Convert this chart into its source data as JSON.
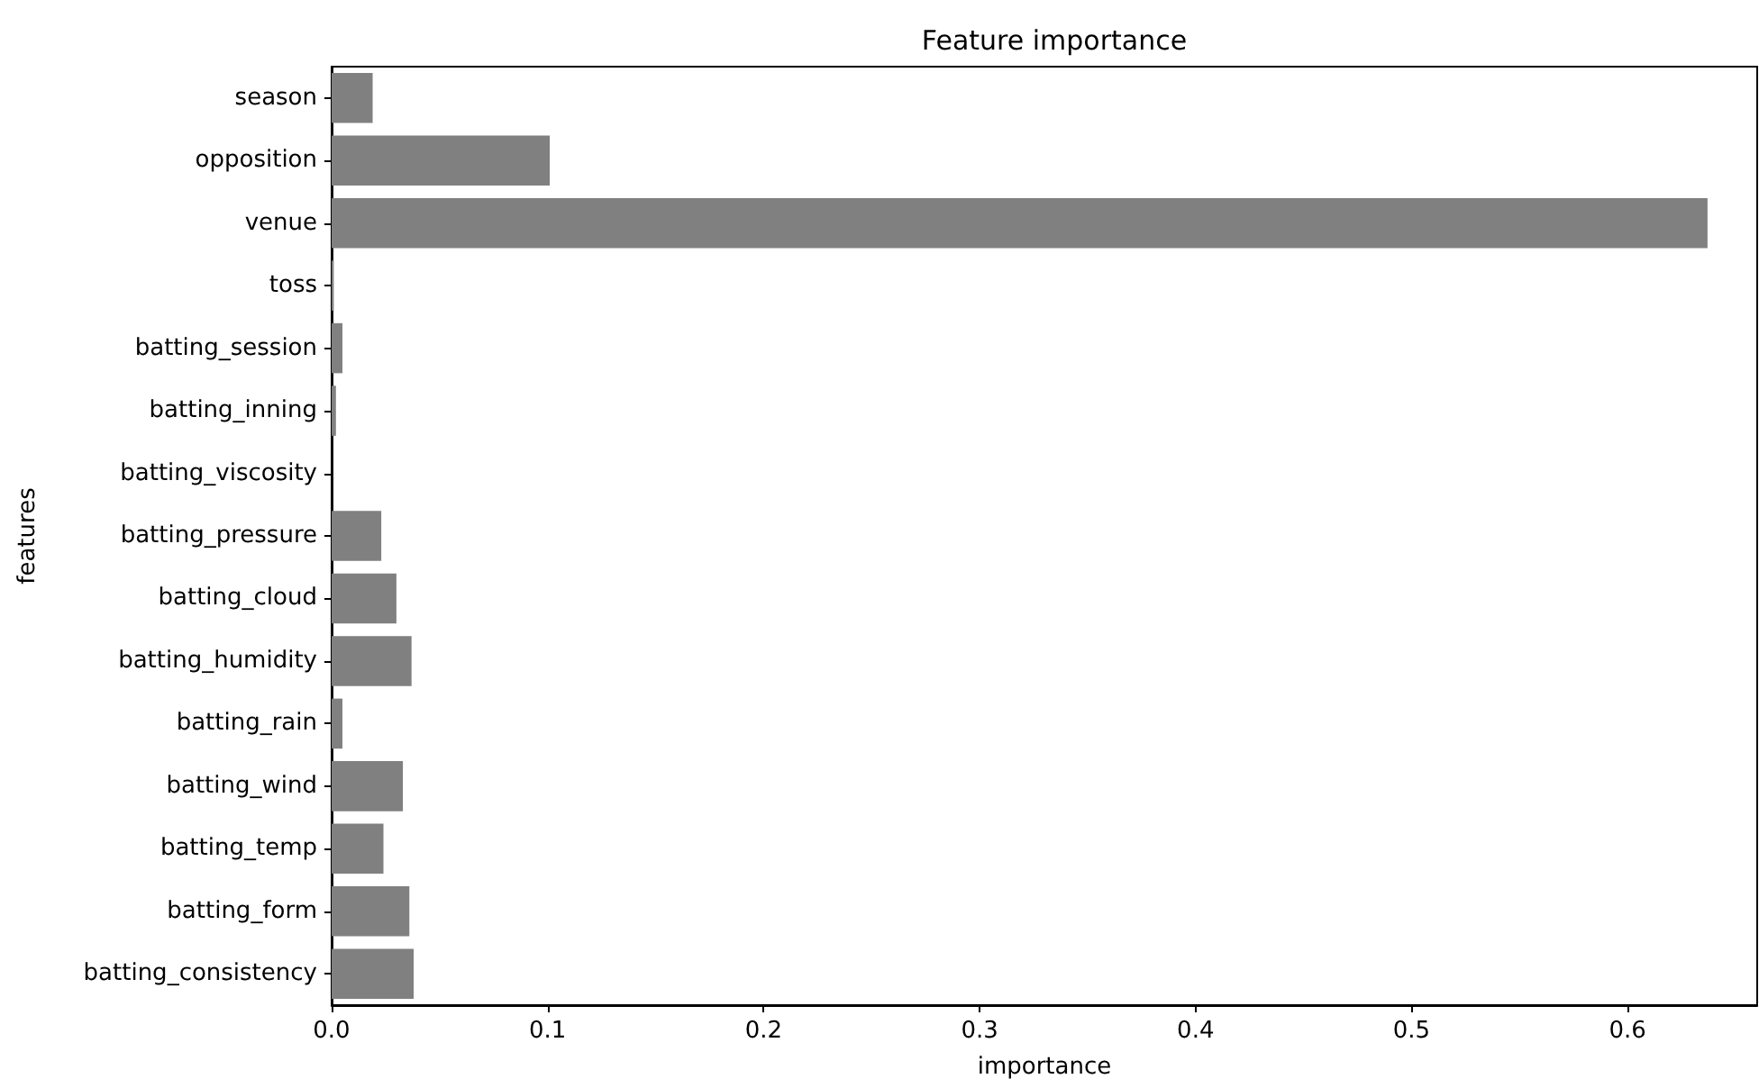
{
  "chart_data": {
    "type": "bar",
    "orientation": "horizontal",
    "title": "Feature importance",
    "xlabel": "importance",
    "ylabel": "features",
    "categories": [
      "season",
      "opposition",
      "venue",
      "toss",
      "batting_session",
      "batting_inning",
      "batting_viscosity",
      "batting_pressure",
      "batting_cloud",
      "batting_humidity",
      "batting_rain",
      "batting_wind",
      "batting_temp",
      "batting_form",
      "batting_consistency"
    ],
    "values": [
      0.019,
      0.101,
      0.637,
      0.001,
      0.005,
      0.002,
      0.0,
      0.023,
      0.03,
      0.037,
      0.005,
      0.033,
      0.024,
      0.036,
      0.038
    ],
    "color": "#808080",
    "xlim": [
      0,
      0.66
    ],
    "xticks": [
      {
        "value": 0,
        "label": "0.0"
      },
      {
        "value": 0.1,
        "label": "0.1"
      },
      {
        "value": 0.2,
        "label": "0.2"
      },
      {
        "value": 0.3,
        "label": "0.3"
      },
      {
        "value": 0.4,
        "label": "0.4"
      },
      {
        "value": 0.5,
        "label": "0.5"
      },
      {
        "value": 0.6,
        "label": "0.6"
      }
    ],
    "tick_labels": true
  }
}
